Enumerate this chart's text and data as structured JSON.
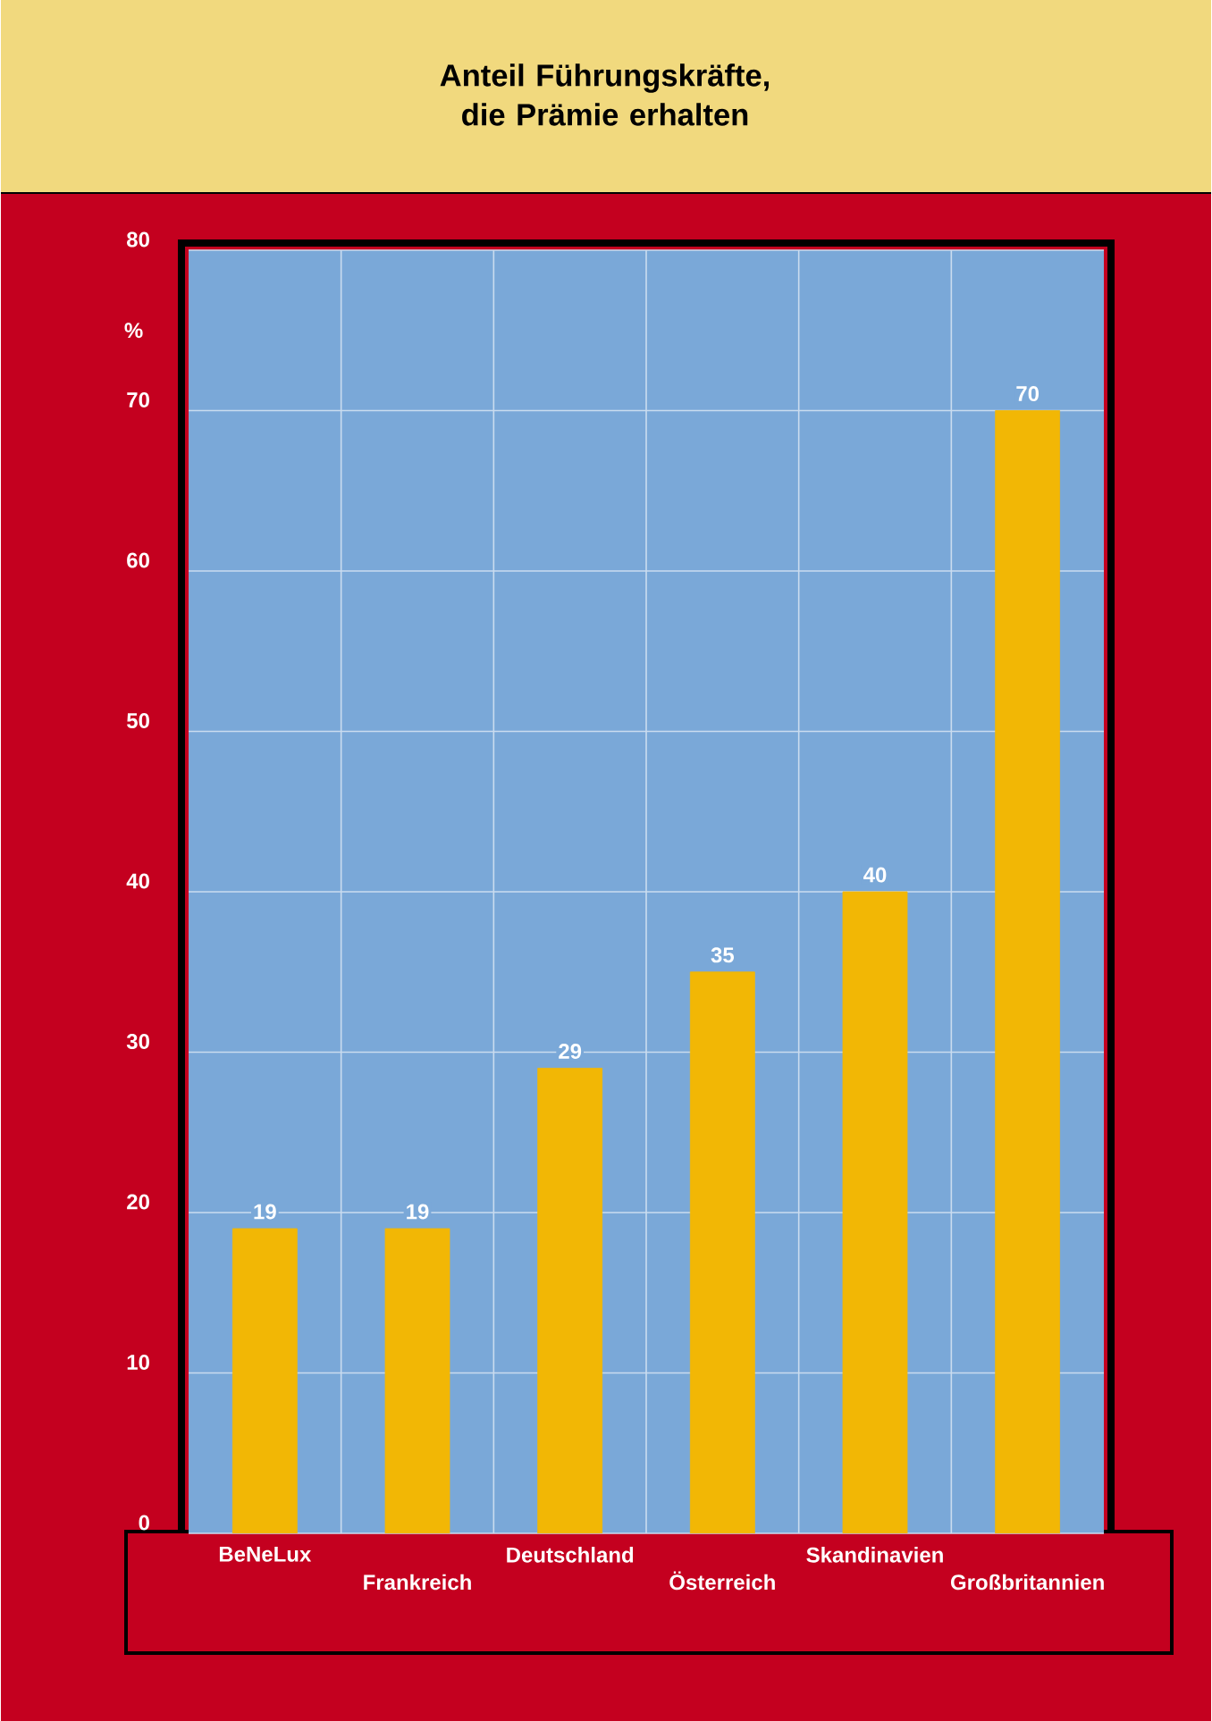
{
  "chart_data": {
    "type": "bar",
    "title": "Anteil Führungskräfte, die Prämie erhalten",
    "ylabel": "%",
    "categories": [
      "BeNeLux",
      "Frankreich",
      "Deutschland",
      "Österreich",
      "Skandinavien",
      "Großbritannien"
    ],
    "values": [
      19,
      19,
      29,
      35,
      40,
      70
    ],
    "color": "#f2b705",
    "ylim": [
      0,
      80
    ],
    "yticks": [
      0,
      10,
      20,
      30,
      40,
      50,
      60,
      70,
      80
    ],
    "grid": "y",
    "data_labels": true
  }
}
